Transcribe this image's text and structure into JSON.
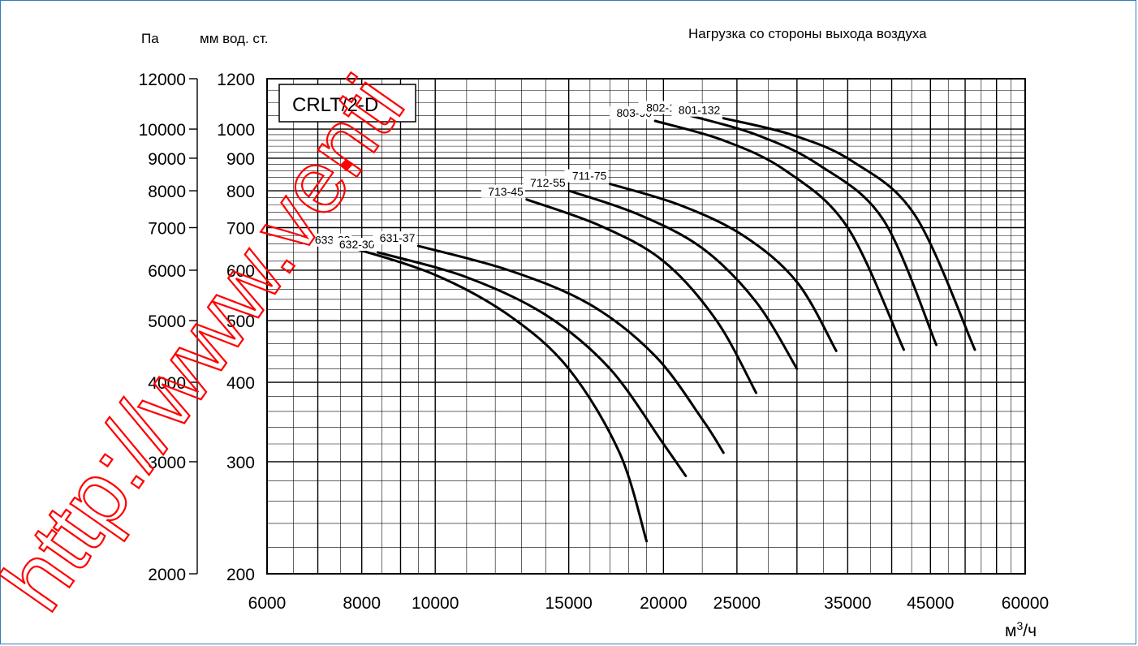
{
  "chart_data": {
    "type": "line",
    "title": "Нагрузка со стороны выхода воздуха",
    "model_label": "CRLT/2-D",
    "x_unit": "м³/ч",
    "y_unit_pa": "Па",
    "y_unit_mm": "мм вод. ст.",
    "xscale": "log",
    "yscale": "log",
    "xlim": [
      6000,
      60000
    ],
    "ylim_mm": [
      200,
      1200
    ],
    "ylim_pa": [
      2000,
      12000
    ],
    "grid": true,
    "x_ticks": [
      6000,
      8000,
      10000,
      15000,
      20000,
      25000,
      35000,
      45000,
      60000
    ],
    "x_tick_labels": [
      "6000",
      "8000",
      "10000",
      "15000",
      "20000",
      "25000",
      "35000",
      "45000",
      "60000"
    ],
    "y_ticks_mm": [
      200,
      300,
      400,
      500,
      600,
      700,
      800,
      900,
      1000,
      1200
    ],
    "y_tick_labels_mm": [
      "200",
      "300",
      "400",
      "500",
      "600",
      "700",
      "800",
      "900",
      "1000",
      "1200"
    ],
    "y_ticks_pa": [
      2000,
      3000,
      4000,
      5000,
      6000,
      7000,
      8000,
      9000,
      10000,
      12000
    ],
    "y_tick_labels_pa": [
      "2000",
      "3000",
      "4000",
      "5000",
      "6000",
      "7000",
      "8000",
      "9000",
      "10000",
      "12000"
    ],
    "series": [
      {
        "name": "633-22",
        "x": [
          7800,
          10000,
          12500,
          15000,
          17500,
          19000
        ],
        "y": [
          650,
          590,
          510,
          420,
          310,
          225
        ]
      },
      {
        "name": "632-30",
        "x": [
          8400,
          11000,
          14000,
          17000,
          20000,
          21400
        ],
        "y": [
          640,
          585,
          510,
          420,
          320,
          285
        ]
      },
      {
        "name": "631-37",
        "x": [
          9500,
          12500,
          16000,
          19500,
          22500,
          24000
        ],
        "y": [
          655,
          600,
          530,
          440,
          350,
          310
        ]
      },
      {
        "name": "713-45",
        "x": [
          13200,
          16500,
          20000,
          23500,
          26500
        ],
        "y": [
          775,
          705,
          620,
          500,
          385
        ]
      },
      {
        "name": "712-55",
        "x": [
          15000,
          18500,
          22500,
          26500,
          30000
        ],
        "y": [
          800,
          735,
          650,
          535,
          420
        ]
      },
      {
        "name": "711-75",
        "x": [
          17000,
          21000,
          25500,
          30000,
          33800
        ],
        "y": [
          820,
          760,
          680,
          575,
          448
        ]
      },
      {
        "name": "803-90",
        "x": [
          19500,
          24000,
          29000,
          35000,
          41500
        ],
        "y": [
          1030,
          960,
          860,
          700,
          450
        ]
      },
      {
        "name": "802-110",
        "x": [
          21700,
          26500,
          32000,
          39000,
          45800
        ],
        "y": [
          1050,
          980,
          880,
          720,
          458
        ]
      },
      {
        "name": "801-132",
        "x": [
          24000,
          29500,
          35500,
          43000,
          51500
        ],
        "y": [
          1040,
          980,
          890,
          730,
          450
        ]
      }
    ]
  },
  "watermark": "http://www.venti"
}
